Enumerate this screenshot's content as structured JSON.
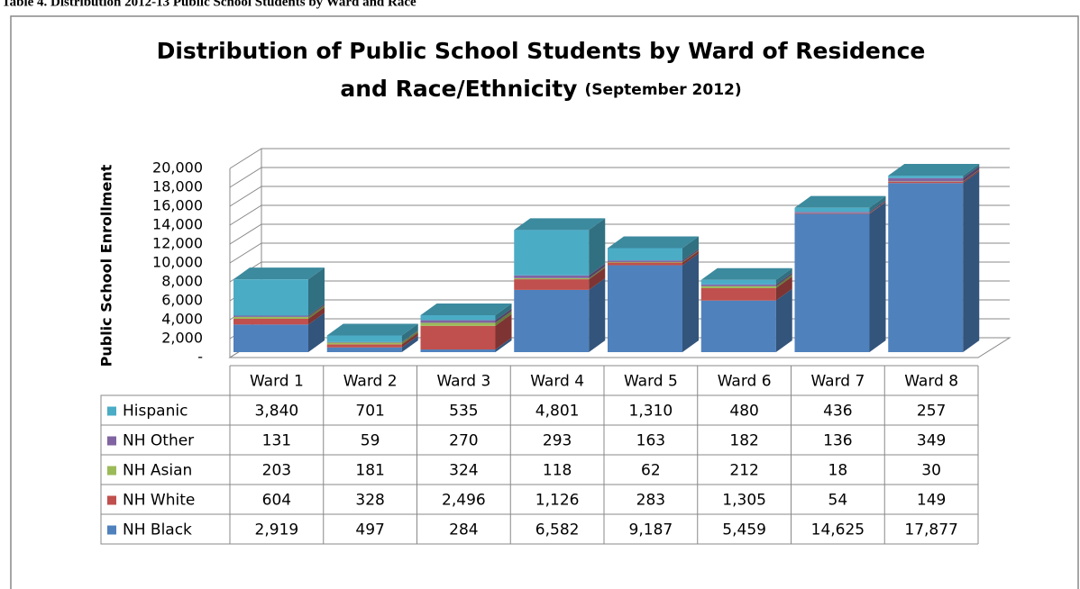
{
  "caption": "Table 4. Distribution 2012-13 Public School Students by Ward and Race",
  "chart_data": {
    "type": "bar3d_stacked",
    "title": "Distribution of Public School Students by Ward of Residence",
    "title_line2": "and Race/Ethnicity",
    "subtitle": "(September 2012)",
    "ylabel": "Public School Enrollment",
    "categories": [
      "Ward 1",
      "Ward 2",
      "Ward 3",
      "Ward 4",
      "Ward 5",
      "Ward 6",
      "Ward 7",
      "Ward 8"
    ],
    "series": [
      {
        "name": "Hispanic",
        "color": "#4bacc6",
        "values": [
          3840,
          701,
          535,
          4801,
          1310,
          480,
          436,
          257
        ],
        "value_labels": [
          "3,840",
          "701",
          "535",
          "4,801",
          "1,310",
          "480",
          "436",
          "257"
        ]
      },
      {
        "name": "NH Other",
        "color": "#8064a2",
        "values": [
          131,
          59,
          270,
          293,
          163,
          182,
          136,
          349
        ],
        "value_labels": [
          "131",
          "59",
          "270",
          "293",
          "163",
          "182",
          "136",
          "349"
        ]
      },
      {
        "name": "NH Asian",
        "color": "#9bbb59",
        "values": [
          203,
          181,
          324,
          118,
          62,
          212,
          18,
          30
        ],
        "value_labels": [
          "203",
          "181",
          "324",
          "118",
          "62",
          "212",
          "18",
          "30"
        ]
      },
      {
        "name": "NH White",
        "color": "#c0504d",
        "values": [
          604,
          328,
          2496,
          1126,
          283,
          1305,
          54,
          149
        ],
        "value_labels": [
          "604",
          "328",
          "2,496",
          "1,126",
          "283",
          "1,305",
          "54",
          "149"
        ]
      },
      {
        "name": "NH Black",
        "color": "#4f81bd",
        "values": [
          2919,
          497,
          284,
          6582,
          9187,
          5459,
          14625,
          17877
        ],
        "value_labels": [
          "2,919",
          "497",
          "284",
          "6,582",
          "9,187",
          "5,459",
          "14,625",
          "17,877"
        ]
      }
    ],
    "ylim": [
      0,
      20000
    ],
    "yticks": [
      {
        "value": 0,
        "label": "-"
      },
      {
        "value": 2000,
        "label": "2,000"
      },
      {
        "value": 4000,
        "label": "4,000"
      },
      {
        "value": 6000,
        "label": "6,000"
      },
      {
        "value": 8000,
        "label": "8,000"
      },
      {
        "value": 10000,
        "label": "10,000"
      },
      {
        "value": 12000,
        "label": "12,000"
      },
      {
        "value": 14000,
        "label": "14,000"
      },
      {
        "value": 16000,
        "label": "16,000"
      },
      {
        "value": 18000,
        "label": "18,000"
      },
      {
        "value": 20000,
        "label": "20,000"
      }
    ],
    "grid": true
  }
}
